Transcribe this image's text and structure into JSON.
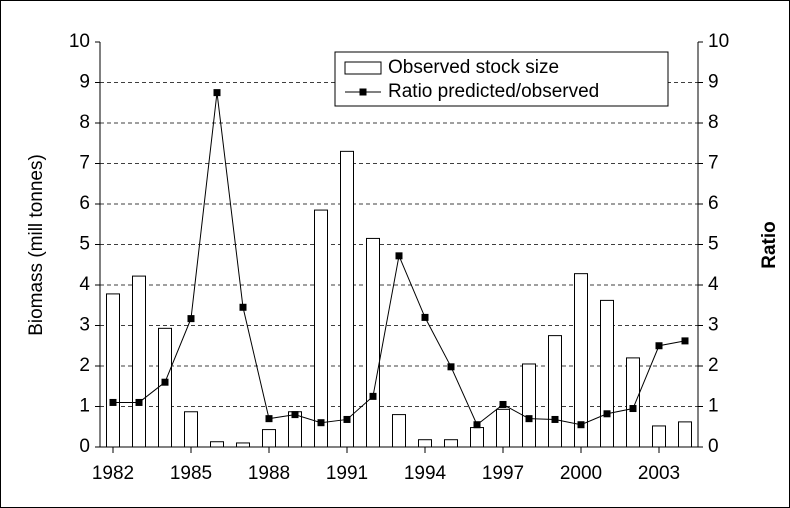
{
  "chart_data": {
    "type": "bar",
    "ylabel": "Biomass (mill tonnes)",
    "y2label": "Ratio",
    "x": [
      1982,
      1983,
      1984,
      1985,
      1986,
      1987,
      1988,
      1989,
      1990,
      1991,
      1992,
      1993,
      1994,
      1995,
      1996,
      1997,
      1998,
      1999,
      2000,
      2001,
      2002,
      2003,
      2004
    ],
    "xlim": [
      1981.5,
      2004.5
    ],
    "xticks": [
      1982,
      1985,
      1988,
      1991,
      1994,
      1997,
      2000,
      2003
    ],
    "ylim": [
      0,
      10
    ],
    "yticks": [
      0,
      1,
      2,
      3,
      4,
      5,
      6,
      7,
      8,
      9,
      10
    ],
    "y2lim": [
      0,
      10
    ],
    "y2ticks": [
      0,
      1,
      2,
      3,
      4,
      5,
      6,
      7,
      8,
      9,
      10
    ],
    "grid": true,
    "legend": "upper right",
    "series": [
      {
        "name": "Observed stock size",
        "type": "bar",
        "color": "#ffffff",
        "values": [
          3.78,
          4.22,
          2.93,
          0.87,
          0.13,
          0.1,
          0.43,
          0.87,
          5.85,
          7.3,
          5.15,
          0.8,
          0.18,
          0.18,
          0.48,
          0.93,
          2.05,
          2.75,
          4.28,
          3.62,
          2.2,
          0.52,
          0.62
        ]
      },
      {
        "name": "Ratio predicted/observed",
        "type": "line",
        "axis": "y2",
        "color": "#000000",
        "values": [
          1.1,
          1.1,
          1.6,
          3.17,
          8.75,
          3.45,
          0.7,
          0.8,
          0.6,
          0.68,
          1.25,
          4.72,
          3.2,
          1.98,
          0.55,
          1.05,
          0.7,
          0.68,
          0.55,
          0.82,
          0.95,
          2.5,
          2.62
        ]
      }
    ]
  }
}
